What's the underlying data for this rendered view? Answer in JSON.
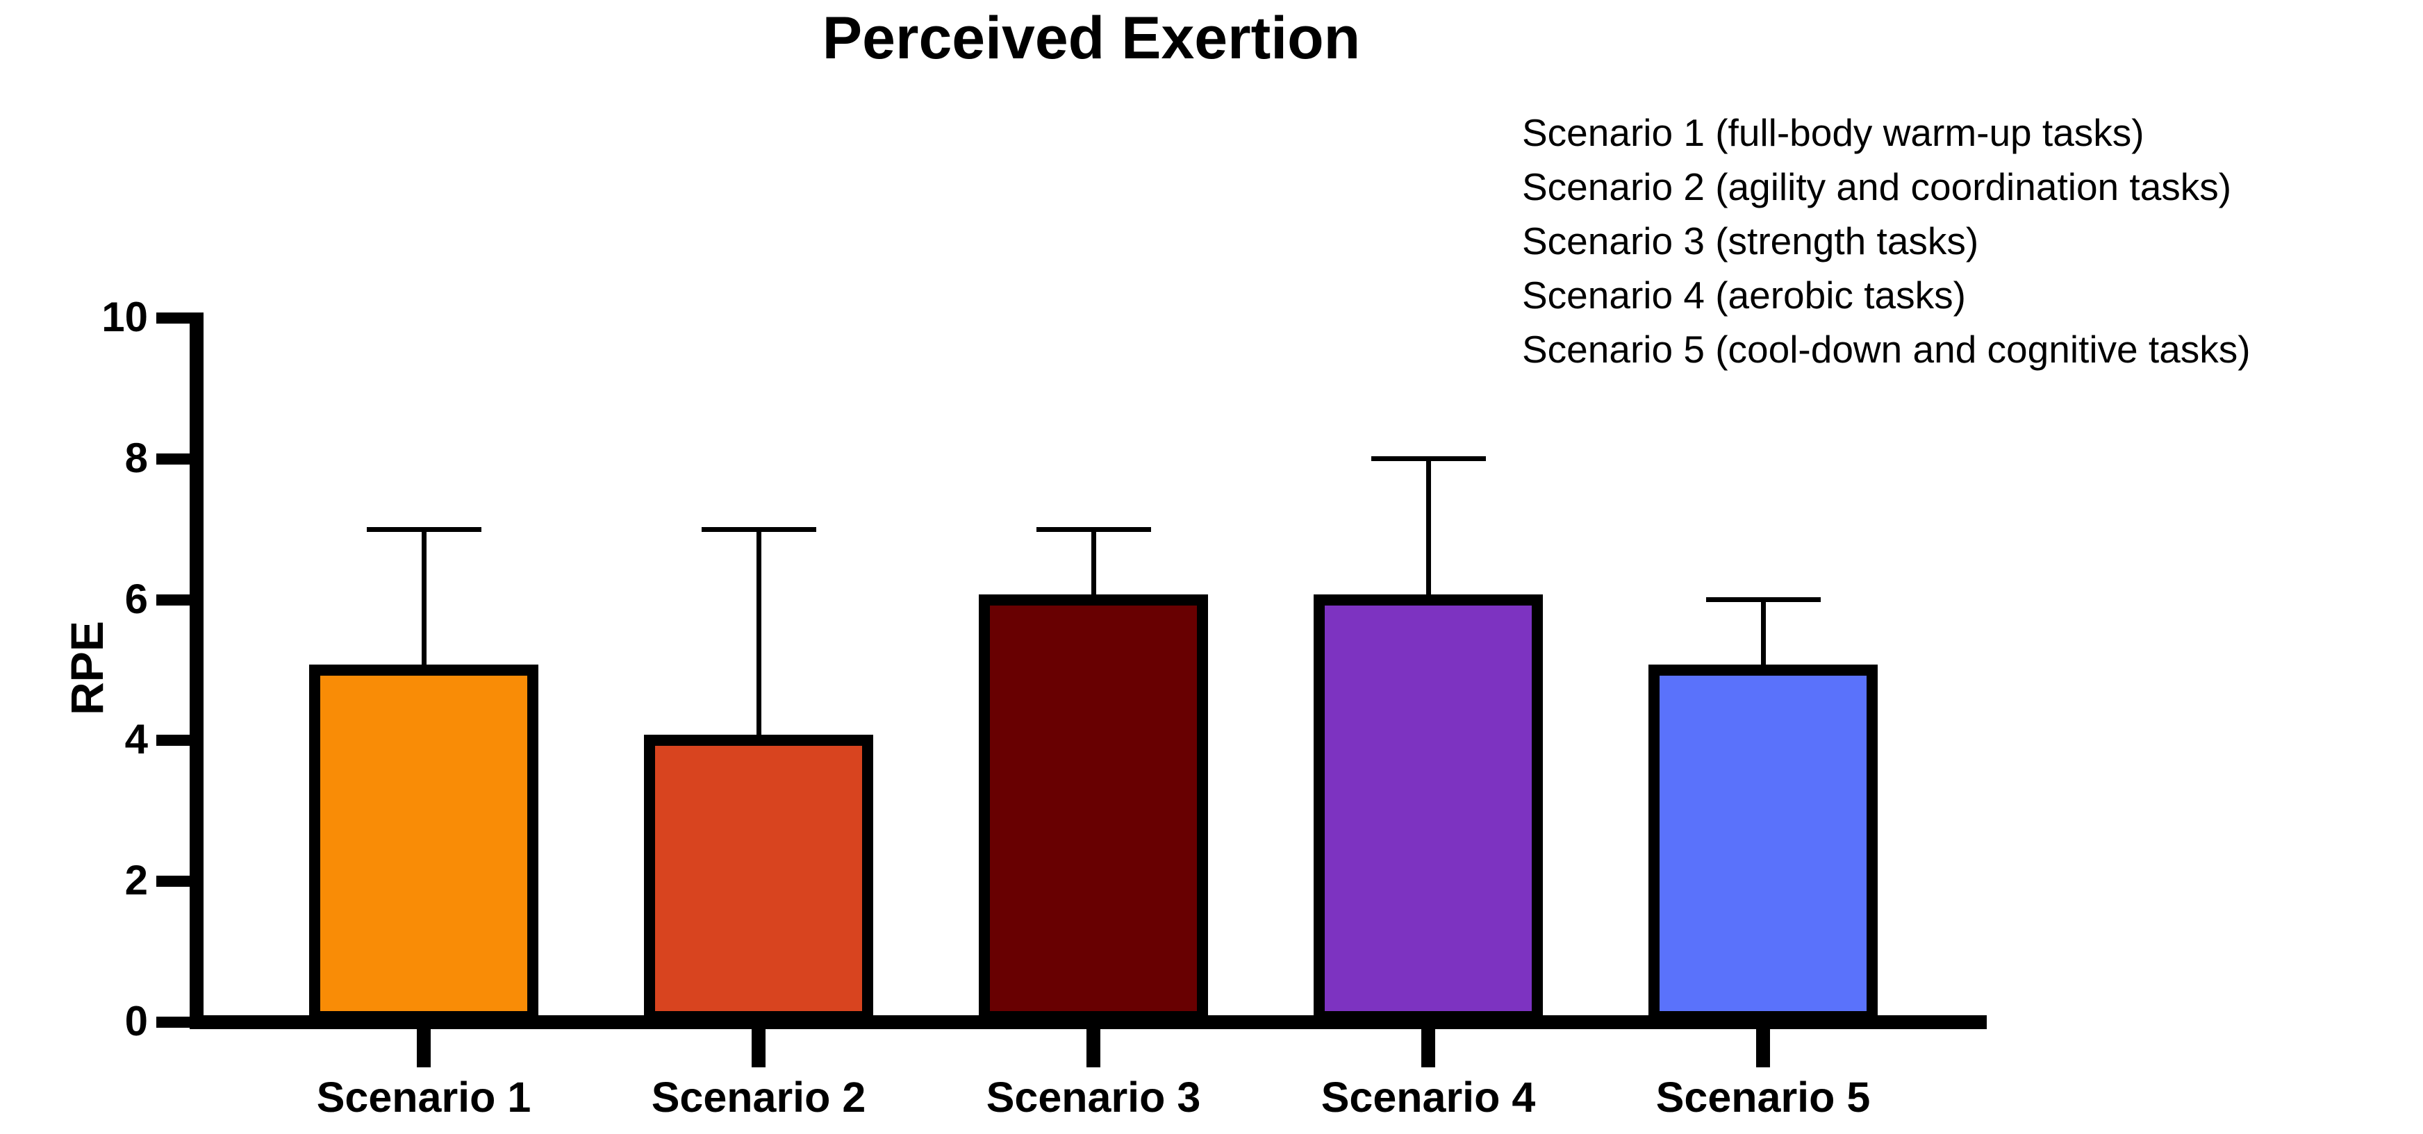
{
  "chart_data": {
    "type": "bar",
    "title": "Perceived Exertion",
    "xlabel": "",
    "ylabel": "RPE",
    "ylim": [
      0,
      10
    ],
    "yticks": [
      0,
      2,
      4,
      6,
      8,
      10
    ],
    "grid": false,
    "legend_position": "top-right",
    "categories": [
      "Scenario 1",
      "Scenario 2",
      "Scenario 3",
      "Scenario 4",
      "Scenario 5"
    ],
    "series": [
      {
        "name": "RPE",
        "values": [
          5,
          4,
          6,
          6,
          5
        ],
        "error_plus": [
          2,
          3,
          1,
          2,
          1
        ],
        "error_minus": [
          0,
          0,
          0,
          0,
          0
        ]
      }
    ],
    "bar_colors": [
      "#F98C06",
      "#D8441F",
      "#680001",
      "#7D33C1",
      "#5A72FB"
    ],
    "bar_border_color": "#000000",
    "error_bar_color": "#000000",
    "axis_color": "#000000",
    "background_color": "#FFFFFF",
    "legend_lines": [
      "Scenario 1 (full-body warm-up tasks)",
      "Scenario 2 (agility and coordination tasks)",
      "Scenario 3 (strength tasks)",
      "Scenario 4 (aerobic tasks)",
      "Scenario 5 (cool-down and cognitive tasks)"
    ]
  }
}
